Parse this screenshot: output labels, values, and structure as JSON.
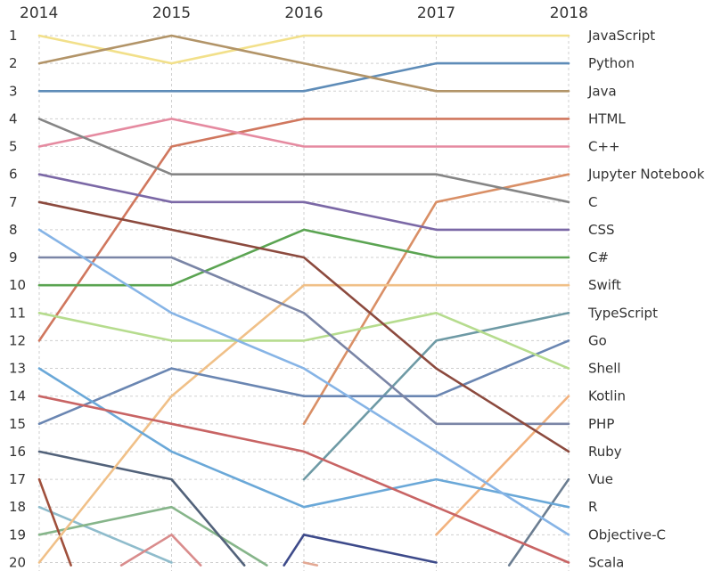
{
  "chart_data": {
    "type": "line",
    "title": "",
    "xlabel": "",
    "ylabel": "",
    "x": [
      "2014",
      "2015",
      "2016",
      "2017",
      "2018"
    ],
    "y_ticks": [
      "1",
      "2",
      "3",
      "4",
      "5",
      "6",
      "7",
      "8",
      "9",
      "10",
      "11",
      "12",
      "13",
      "14",
      "15",
      "16",
      "17",
      "18",
      "19",
      "20"
    ],
    "ylim": [
      1,
      20
    ],
    "y_inverted": true,
    "grid": true,
    "legend_placement": "right",
    "series": [
      {
        "name": "JavaScript",
        "color": "#f2e08a",
        "values": [
          1,
          2,
          1,
          1,
          1
        ]
      },
      {
        "name": "Python",
        "color": "#5e8cb8",
        "values": [
          3,
          3,
          3,
          2,
          2
        ]
      },
      {
        "name": "Java",
        "color": "#b29468",
        "values": [
          2,
          1,
          2,
          3,
          3
        ]
      },
      {
        "name": "HTML",
        "color": "#d0775e",
        "values": [
          12,
          5,
          4,
          4,
          4
        ]
      },
      {
        "name": "C++",
        "color": "#e58aa0",
        "values": [
          5,
          4,
          5,
          5,
          5
        ]
      },
      {
        "name": "Jupyter Notebook",
        "color": "#d98f66",
        "values": [
          null,
          null,
          15,
          7,
          6
        ]
      },
      {
        "name": "C",
        "color": "#858585",
        "values": [
          4,
          6,
          6,
          6,
          7
        ]
      },
      {
        "name": "CSS",
        "color": "#7b68a6",
        "values": [
          6,
          7,
          7,
          8,
          8
        ]
      },
      {
        "name": "C#",
        "color": "#5ba452",
        "values": [
          10,
          10,
          8,
          9,
          9
        ]
      },
      {
        "name": "Swift",
        "color": "#f0c088",
        "values": [
          20,
          14,
          10,
          10,
          10
        ]
      },
      {
        "name": "TypeScript",
        "color": "#6e9aa5",
        "values": [
          null,
          null,
          17,
          12,
          11
        ]
      },
      {
        "name": "Go",
        "color": "#6a86b2",
        "values": [
          15,
          13,
          14,
          14,
          12
        ]
      },
      {
        "name": "Shell",
        "color": "#b6dc8e",
        "values": [
          11,
          12,
          12,
          11,
          13
        ]
      },
      {
        "name": "Kotlin",
        "color": "#f2b27e",
        "values": [
          null,
          null,
          null,
          19,
          14
        ]
      },
      {
        "name": "PHP",
        "color": "#7a85a6",
        "values": [
          9,
          9,
          11,
          15,
          15
        ]
      },
      {
        "name": "Ruby",
        "color": "#8c4a3e",
        "values": [
          7,
          8,
          9,
          13,
          16
        ]
      },
      {
        "name": "Vue",
        "color": "#566878",
        "values": [
          null,
          null,
          null,
          null,
          17
        ]
      },
      {
        "name": "R",
        "color": "#6aa8d8",
        "values": [
          13,
          16,
          18,
          17,
          18
        ]
      },
      {
        "name": "Objective-C",
        "color": "#86b4e6",
        "values": [
          8,
          11,
          13,
          16,
          19
        ]
      },
      {
        "name": "Scala",
        "color": "#c86464",
        "values": [
          14,
          15,
          16,
          18,
          20
        ]
      }
    ],
    "partial_lines": [
      {
        "color": "#8fbccc",
        "points": [
          [
            2014,
            18
          ],
          [
            2015,
            20
          ]
        ]
      },
      {
        "color": "#86b58a",
        "points": [
          [
            2014,
            19
          ],
          [
            2015,
            18
          ],
          [
            2015.72,
            20.1
          ]
        ]
      },
      {
        "color": "#a0503c",
        "points": [
          [
            2014,
            17
          ],
          [
            2014.24,
            20.1
          ]
        ]
      },
      {
        "color": "#d98c8c",
        "points": [
          [
            2014.62,
            20.1
          ],
          [
            2015,
            19
          ],
          [
            2015.22,
            20.1
          ]
        ]
      },
      {
        "color": "#52627a",
        "points": [
          [
            2014,
            16
          ],
          [
            2015,
            17
          ],
          [
            2015.55,
            20.1
          ]
        ]
      },
      {
        "color": "#3d4a8a",
        "points": [
          [
            2015.85,
            20.1
          ],
          [
            2016,
            19
          ],
          [
            2017,
            20
          ]
        ]
      },
      {
        "color": "#e3a893",
        "points": [
          [
            2016,
            20
          ],
          [
            2016.1,
            20.1
          ]
        ]
      },
      {
        "color": "#6b7d91",
        "points": [
          [
            2017.55,
            20.1
          ],
          [
            2018,
            17
          ]
        ]
      }
    ]
  }
}
